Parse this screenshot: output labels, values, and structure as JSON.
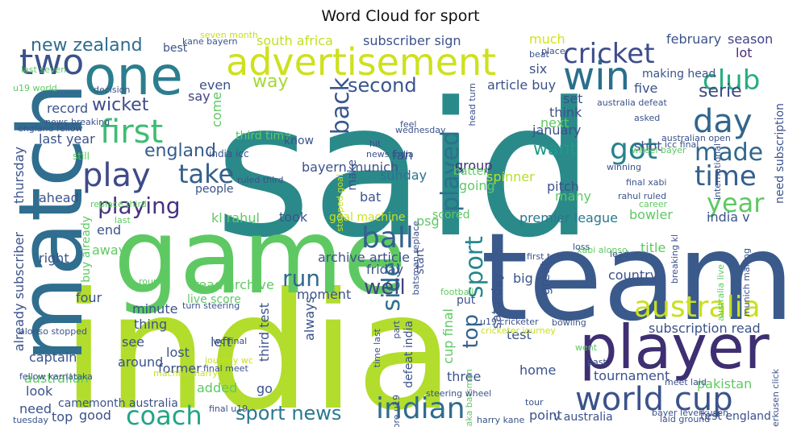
{
  "title": "Word Cloud for sport",
  "words": [
    {
      "text": "said",
      "color": "#2a8a8a"
    },
    {
      "text": "india",
      "color": "#b2dd2c"
    },
    {
      "text": "team",
      "color": "#3b5a8c"
    },
    {
      "text": "game",
      "color": "#5ec962"
    },
    {
      "text": "match",
      "color": "#2f6e8e"
    },
    {
      "text": "player",
      "color": "#3e2f72"
    },
    {
      "text": "advertisement",
      "color": "#cde11d"
    },
    {
      "text": "one",
      "color": "#2c7e8e"
    },
    {
      "text": "win",
      "color": "#2a6f8d"
    },
    {
      "text": "two",
      "color": "#3a528b"
    },
    {
      "text": "world cup",
      "color": "#3b528b"
    },
    {
      "text": "indian",
      "color": "#2f6c8e"
    },
    {
      "text": "australia",
      "color": "#c8e020"
    },
    {
      "text": "cricket",
      "color": "#3d4e8a"
    },
    {
      "text": "club",
      "color": "#27ad81"
    },
    {
      "text": "first",
      "color": "#3fbc73"
    },
    {
      "text": "play",
      "color": "#3e4a89"
    },
    {
      "text": "take",
      "color": "#35608d"
    },
    {
      "text": "coach",
      "color": "#21a585"
    },
    {
      "text": "day",
      "color": "#31668e"
    },
    {
      "text": "got",
      "color": "#26828e"
    },
    {
      "text": "made",
      "color": "#31678e"
    },
    {
      "text": "time",
      "color": "#34608d"
    },
    {
      "text": "year",
      "color": "#5ec962"
    },
    {
      "text": "ball",
      "color": "#34618d"
    },
    {
      "text": "played",
      "color": "#2d708e"
    },
    {
      "text": "back",
      "color": "#38588c"
    },
    {
      "text": "sport",
      "color": "#24878e"
    },
    {
      "text": "top",
      "color": "#33638d"
    },
    {
      "text": "side",
      "color": "#2e6e8e"
    },
    {
      "text": "playing",
      "color": "#46327e"
    },
    {
      "text": "run",
      "color": "#31688e"
    },
    {
      "text": "well",
      "color": "#414487"
    },
    {
      "text": "sport news",
      "color": "#2a788e"
    },
    {
      "text": "second",
      "color": "#3a548c"
    },
    {
      "text": "way",
      "color": "#a2da37"
    },
    {
      "text": "new zealand",
      "color": "#2f6c8e"
    },
    {
      "text": "wicket",
      "color": "#3e4c8a"
    },
    {
      "text": "england",
      "color": "#365c8d"
    },
    {
      "text": "want",
      "color": "#1f9a8a"
    },
    {
      "text": "serie",
      "color": "#3e4a89"
    },
    {
      "text": "south africa",
      "color": "#c2df23"
    },
    {
      "text": "subscriber sign",
      "color": "#3b528b"
    },
    {
      "text": "much",
      "color": "#d5e21a"
    },
    {
      "text": "february",
      "color": "#3b528b"
    },
    {
      "text": "season",
      "color": "#414487"
    },
    {
      "text": "lot",
      "color": "#482878"
    },
    {
      "text": "record",
      "color": "#3b528b"
    },
    {
      "text": "last year",
      "color": "#3b528b"
    },
    {
      "text": "even",
      "color": "#3b528b"
    },
    {
      "text": "say",
      "color": "#414487"
    },
    {
      "text": "come",
      "color": "#5ec962"
    },
    {
      "text": "bayern munich",
      "color": "#3b528b"
    },
    {
      "text": "fan",
      "color": "#3b528b"
    },
    {
      "text": "sunday",
      "color": "#2c728e"
    },
    {
      "text": "group",
      "color": "#472c7a"
    },
    {
      "text": "going",
      "color": "#5ec962"
    },
    {
      "text": "article buy",
      "color": "#3b528b"
    },
    {
      "text": "next",
      "color": "#5ec962"
    },
    {
      "text": "think",
      "color": "#3b528b"
    },
    {
      "text": "set",
      "color": "#3b528b"
    },
    {
      "text": "january",
      "color": "#3b528b"
    },
    {
      "text": "five",
      "color": "#3b528b"
    },
    {
      "text": "six",
      "color": "#3b528b"
    },
    {
      "text": "making head",
      "color": "#3b528b"
    },
    {
      "text": "best",
      "color": "#3b528b"
    },
    {
      "text": "batter",
      "color": "#5ec962"
    },
    {
      "text": "spinner",
      "color": "#b5de2b"
    },
    {
      "text": "shot",
      "color": "#3b528b"
    },
    {
      "text": "pitch",
      "color": "#3b528b"
    },
    {
      "text": "many",
      "color": "#5ec962"
    },
    {
      "text": "psg",
      "color": "#5ec962"
    },
    {
      "text": "scored",
      "color": "#5ec962"
    },
    {
      "text": "bat",
      "color": "#3b528b"
    },
    {
      "text": "ahead",
      "color": "#3b528b"
    },
    {
      "text": "people",
      "color": "#3b528b"
    },
    {
      "text": "kl rahul",
      "color": "#5ec962"
    },
    {
      "text": "took",
      "color": "#3b528b"
    },
    {
      "text": "goal machine",
      "color": "#c8e020"
    },
    {
      "text": "premier league",
      "color": "#2a788e"
    },
    {
      "text": "bowler",
      "color": "#5ec962"
    },
    {
      "text": "india v",
      "color": "#3b528b"
    },
    {
      "text": "end",
      "color": "#3b528b"
    },
    {
      "text": "right",
      "color": "#3b528b"
    },
    {
      "text": "away",
      "color": "#5ec962"
    },
    {
      "text": "archive article",
      "color": "#3b528b"
    },
    {
      "text": "friday",
      "color": "#3b528b"
    },
    {
      "text": "title",
      "color": "#5ec962"
    },
    {
      "text": "country",
      "color": "#3b528b"
    },
    {
      "text": "big",
      "color": "#3b528b"
    },
    {
      "text": "great",
      "color": "#3b528b"
    },
    {
      "text": "read archive",
      "color": "#5ec962"
    },
    {
      "text": "live score",
      "color": "#5ec962"
    },
    {
      "text": "moment",
      "color": "#3b528b"
    },
    {
      "text": "minute",
      "color": "#3b528b"
    },
    {
      "text": "thing",
      "color": "#3b528b"
    },
    {
      "text": "four",
      "color": "#3b528b"
    },
    {
      "text": "see",
      "color": "#3b528b"
    },
    {
      "text": "lost",
      "color": "#3b528b"
    },
    {
      "text": "left",
      "color": "#3b528b"
    },
    {
      "text": "captain",
      "color": "#3b528b"
    },
    {
      "text": "around",
      "color": "#3b528b"
    },
    {
      "text": "former",
      "color": "#3b528b"
    },
    {
      "text": "australian",
      "color": "#5ec962"
    },
    {
      "text": "look",
      "color": "#3b528b"
    },
    {
      "text": "added",
      "color": "#5ec962"
    },
    {
      "text": "go",
      "color": "#3b528b"
    },
    {
      "text": "came",
      "color": "#3b528b"
    },
    {
      "text": "month australia",
      "color": "#3b528b"
    },
    {
      "text": "need",
      "color": "#3b528b"
    },
    {
      "text": "top",
      "color": "#3b528b"
    },
    {
      "text": "good",
      "color": "#3b528b"
    },
    {
      "text": "always",
      "color": "#3b528b"
    },
    {
      "text": "test",
      "color": "#3b528b"
    },
    {
      "text": "three",
      "color": "#3b528b"
    },
    {
      "text": "home",
      "color": "#3b528b"
    },
    {
      "text": "point",
      "color": "#3b528b"
    },
    {
      "text": "tournament",
      "color": "#3b528b"
    },
    {
      "text": "pakistan",
      "color": "#5ec962"
    },
    {
      "text": "subscription read",
      "color": "#3b528b"
    },
    {
      "text": "v australia",
      "color": "#3b528b"
    },
    {
      "text": "test england",
      "color": "#3b528b"
    },
    {
      "text": "third test",
      "color": "#3b528b"
    },
    {
      "text": "already subscriber",
      "color": "#3b528b"
    },
    {
      "text": "thursday",
      "color": "#3b528b"
    },
    {
      "text": "buy already",
      "color": "#5ec962"
    },
    {
      "text": "need subscription",
      "color": "#3b528b"
    },
    {
      "text": "saturday",
      "color": "#3b528b"
    },
    {
      "text": "cup final",
      "color": "#5ec962"
    },
    {
      "text": "defeat india",
      "color": "#3b528b"
    },
    {
      "text": "start",
      "color": "#3b528b"
    },
    {
      "text": "make",
      "color": "#3b528b"
    },
    {
      "text": "india icc",
      "color": "#3b528b"
    },
    {
      "text": "third time",
      "color": "#5ec962"
    },
    {
      "text": "know",
      "color": "#3b528b"
    },
    {
      "text": "still",
      "color": "#5ec962"
    },
    {
      "text": "last seven",
      "color": "#5ec962"
    },
    {
      "text": "u19 world",
      "color": "#5ec962"
    },
    {
      "text": "england fellow",
      "color": "#3b528b"
    },
    {
      "text": "seven month",
      "color": "#c8e020"
    },
    {
      "text": "kane bayern",
      "color": "#3b528b"
    },
    {
      "text": "decision",
      "color": "#3b528b"
    },
    {
      "text": "news breaking",
      "color": "#3b528b"
    },
    {
      "text": "replace third",
      "color": "#5ec962"
    },
    {
      "text": "ruled third",
      "color": "#3b528b"
    },
    {
      "text": "final xabi",
      "color": "#3b528b"
    },
    {
      "text": "rahul ruled",
      "color": "#3b528b"
    },
    {
      "text": "career",
      "color": "#5ec962"
    },
    {
      "text": "australia defeat",
      "color": "#3b528b"
    },
    {
      "text": "australian open",
      "color": "#3b528b"
    },
    {
      "text": "wheel bayer",
      "color": "#5ec962"
    },
    {
      "text": "icc final",
      "color": "#3b528b"
    },
    {
      "text": "winning",
      "color": "#3b528b"
    },
    {
      "text": "international",
      "color": "#3b528b"
    },
    {
      "text": "xabi alonso",
      "color": "#5ec962"
    },
    {
      "text": "first test",
      "color": "#3b528b"
    },
    {
      "text": "loss",
      "color": "#3b528b"
    },
    {
      "text": "lead",
      "color": "#3b528b"
    },
    {
      "text": "breaking kl",
      "color": "#3b528b"
    },
    {
      "text": "australia live",
      "color": "#5ec962"
    },
    {
      "text": "munich making",
      "color": "#3b528b"
    },
    {
      "text": "alonso stopped",
      "color": "#3b528b"
    },
    {
      "text": "turn steering",
      "color": "#3b528b"
    },
    {
      "text": "fellow karnataka",
      "color": "#3b528b"
    },
    {
      "text": "machine harry",
      "color": "#c8e020"
    },
    {
      "text": "journey wc",
      "color": "#c8e020"
    },
    {
      "text": "final meet",
      "color": "#3b528b"
    },
    {
      "text": "wc final",
      "color": "#3b528b"
    },
    {
      "text": "went",
      "color": "#5ec962"
    },
    {
      "text": "past",
      "color": "#3b528b"
    },
    {
      "text": "bowling",
      "color": "#3b528b"
    },
    {
      "text": "u19 cricketer",
      "color": "#3b528b"
    },
    {
      "text": "cricketer journey",
      "color": "#c8e020"
    },
    {
      "text": "time last",
      "color": "#3b528b"
    },
    {
      "text": "karnataka batsman",
      "color": "#5ec962"
    },
    {
      "text": "harry kane",
      "color": "#3b528b"
    },
    {
      "text": "meet laid",
      "color": "#3b528b"
    },
    {
      "text": "bayer leverkusen",
      "color": "#3b528b"
    },
    {
      "text": "leverkusen click",
      "color": "#3b528b"
    },
    {
      "text": "laid ground",
      "color": "#3b528b"
    },
    {
      "text": "steering wheel",
      "color": "#3b528b"
    },
    {
      "text": "score u19",
      "color": "#3b528b"
    },
    {
      "text": "final u19",
      "color": "#3b528b"
    },
    {
      "text": "tuesday",
      "color": "#3b528b"
    },
    {
      "text": "tour",
      "color": "#3b528b"
    },
    {
      "text": "football",
      "color": "#5ec962"
    },
    {
      "text": "put",
      "color": "#3b528b"
    },
    {
      "text": "part",
      "color": "#3b528b"
    },
    {
      "text": "round",
      "color": "#5ec962"
    },
    {
      "text": "last",
      "color": "#5ec962"
    },
    {
      "text": "batsman replace",
      "color": "#3b528b"
    },
    {
      "text": "stopped goal",
      "color": "#c8e020"
    },
    {
      "text": "hit",
      "color": "#3b528b"
    },
    {
      "text": "news india",
      "color": "#3b528b"
    },
    {
      "text": "wednesday",
      "color": "#3b528b"
    },
    {
      "text": "feel",
      "color": "#3b528b"
    },
    {
      "text": "head turn",
      "color": "#3b528b"
    },
    {
      "text": "asked",
      "color": "#3b528b"
    },
    {
      "text": "place",
      "color": "#3b528b"
    },
    {
      "text": "beat",
      "color": "#3b528b"
    }
  ]
}
